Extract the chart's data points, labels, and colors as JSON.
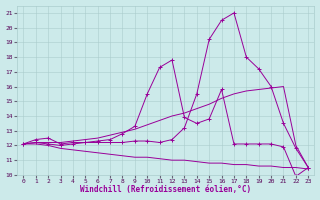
{
  "xlabel": "Windchill (Refroidissement éolien,°C)",
  "background_color": "#cceaea",
  "line_color": "#990099",
  "xlim": [
    -0.5,
    23.5
  ],
  "ylim": [
    10,
    21.5
  ],
  "yticks": [
    10,
    11,
    12,
    13,
    14,
    15,
    16,
    17,
    18,
    19,
    20,
    21
  ],
  "xticks": [
    0,
    1,
    2,
    3,
    4,
    5,
    6,
    7,
    8,
    9,
    10,
    11,
    12,
    13,
    14,
    15,
    16,
    17,
    18,
    19,
    20,
    21,
    22,
    23
  ],
  "series": [
    {
      "x": [
        0,
        1,
        2,
        3,
        4,
        5,
        6,
        7,
        8,
        9,
        10,
        11,
        12,
        13,
        14,
        15,
        16,
        17,
        18,
        19,
        20,
        21,
        22,
        23
      ],
      "y": [
        12.1,
        12.2,
        12.1,
        12.0,
        12.1,
        12.2,
        12.2,
        12.2,
        12.2,
        12.3,
        12.3,
        12.2,
        12.4,
        13.2,
        15.5,
        19.2,
        20.5,
        21.0,
        18.0,
        17.2,
        16.0,
        13.5,
        11.8,
        10.5
      ],
      "marker": true
    },
    {
      "x": [
        0,
        1,
        2,
        3,
        4,
        5,
        6,
        7,
        8,
        9,
        10,
        11,
        12,
        13,
        14,
        15,
        16,
        17,
        18,
        19,
        20,
        21,
        22,
        23
      ],
      "y": [
        12.1,
        12.2,
        12.2,
        12.2,
        12.3,
        12.4,
        12.5,
        12.7,
        12.9,
        13.1,
        13.4,
        13.7,
        14.0,
        14.2,
        14.5,
        14.8,
        15.2,
        15.5,
        15.7,
        15.8,
        15.9,
        16.0,
        12.0,
        10.5
      ],
      "marker": false
    },
    {
      "x": [
        0,
        1,
        2,
        3,
        4,
        5,
        6,
        7,
        8,
        9,
        10,
        11,
        12,
        13,
        14,
        15,
        16,
        17,
        18,
        19,
        20,
        21,
        22,
        23
      ],
      "y": [
        12.1,
        12.4,
        12.5,
        12.1,
        12.2,
        12.2,
        12.3,
        12.4,
        12.8,
        13.3,
        15.5,
        17.3,
        17.8,
        13.9,
        13.5,
        13.8,
        15.8,
        12.1,
        12.1,
        12.1,
        12.1,
        11.9,
        9.9,
        10.5
      ],
      "marker": true
    },
    {
      "x": [
        0,
        1,
        2,
        3,
        4,
        5,
        6,
        7,
        8,
        9,
        10,
        11,
        12,
        13,
        14,
        15,
        16,
        17,
        18,
        19,
        20,
        21,
        22,
        23
      ],
      "y": [
        12.1,
        12.1,
        12.0,
        11.8,
        11.7,
        11.6,
        11.5,
        11.4,
        11.3,
        11.2,
        11.2,
        11.1,
        11.0,
        11.0,
        10.9,
        10.8,
        10.8,
        10.7,
        10.7,
        10.6,
        10.6,
        10.5,
        10.5,
        10.4
      ],
      "marker": false
    }
  ]
}
